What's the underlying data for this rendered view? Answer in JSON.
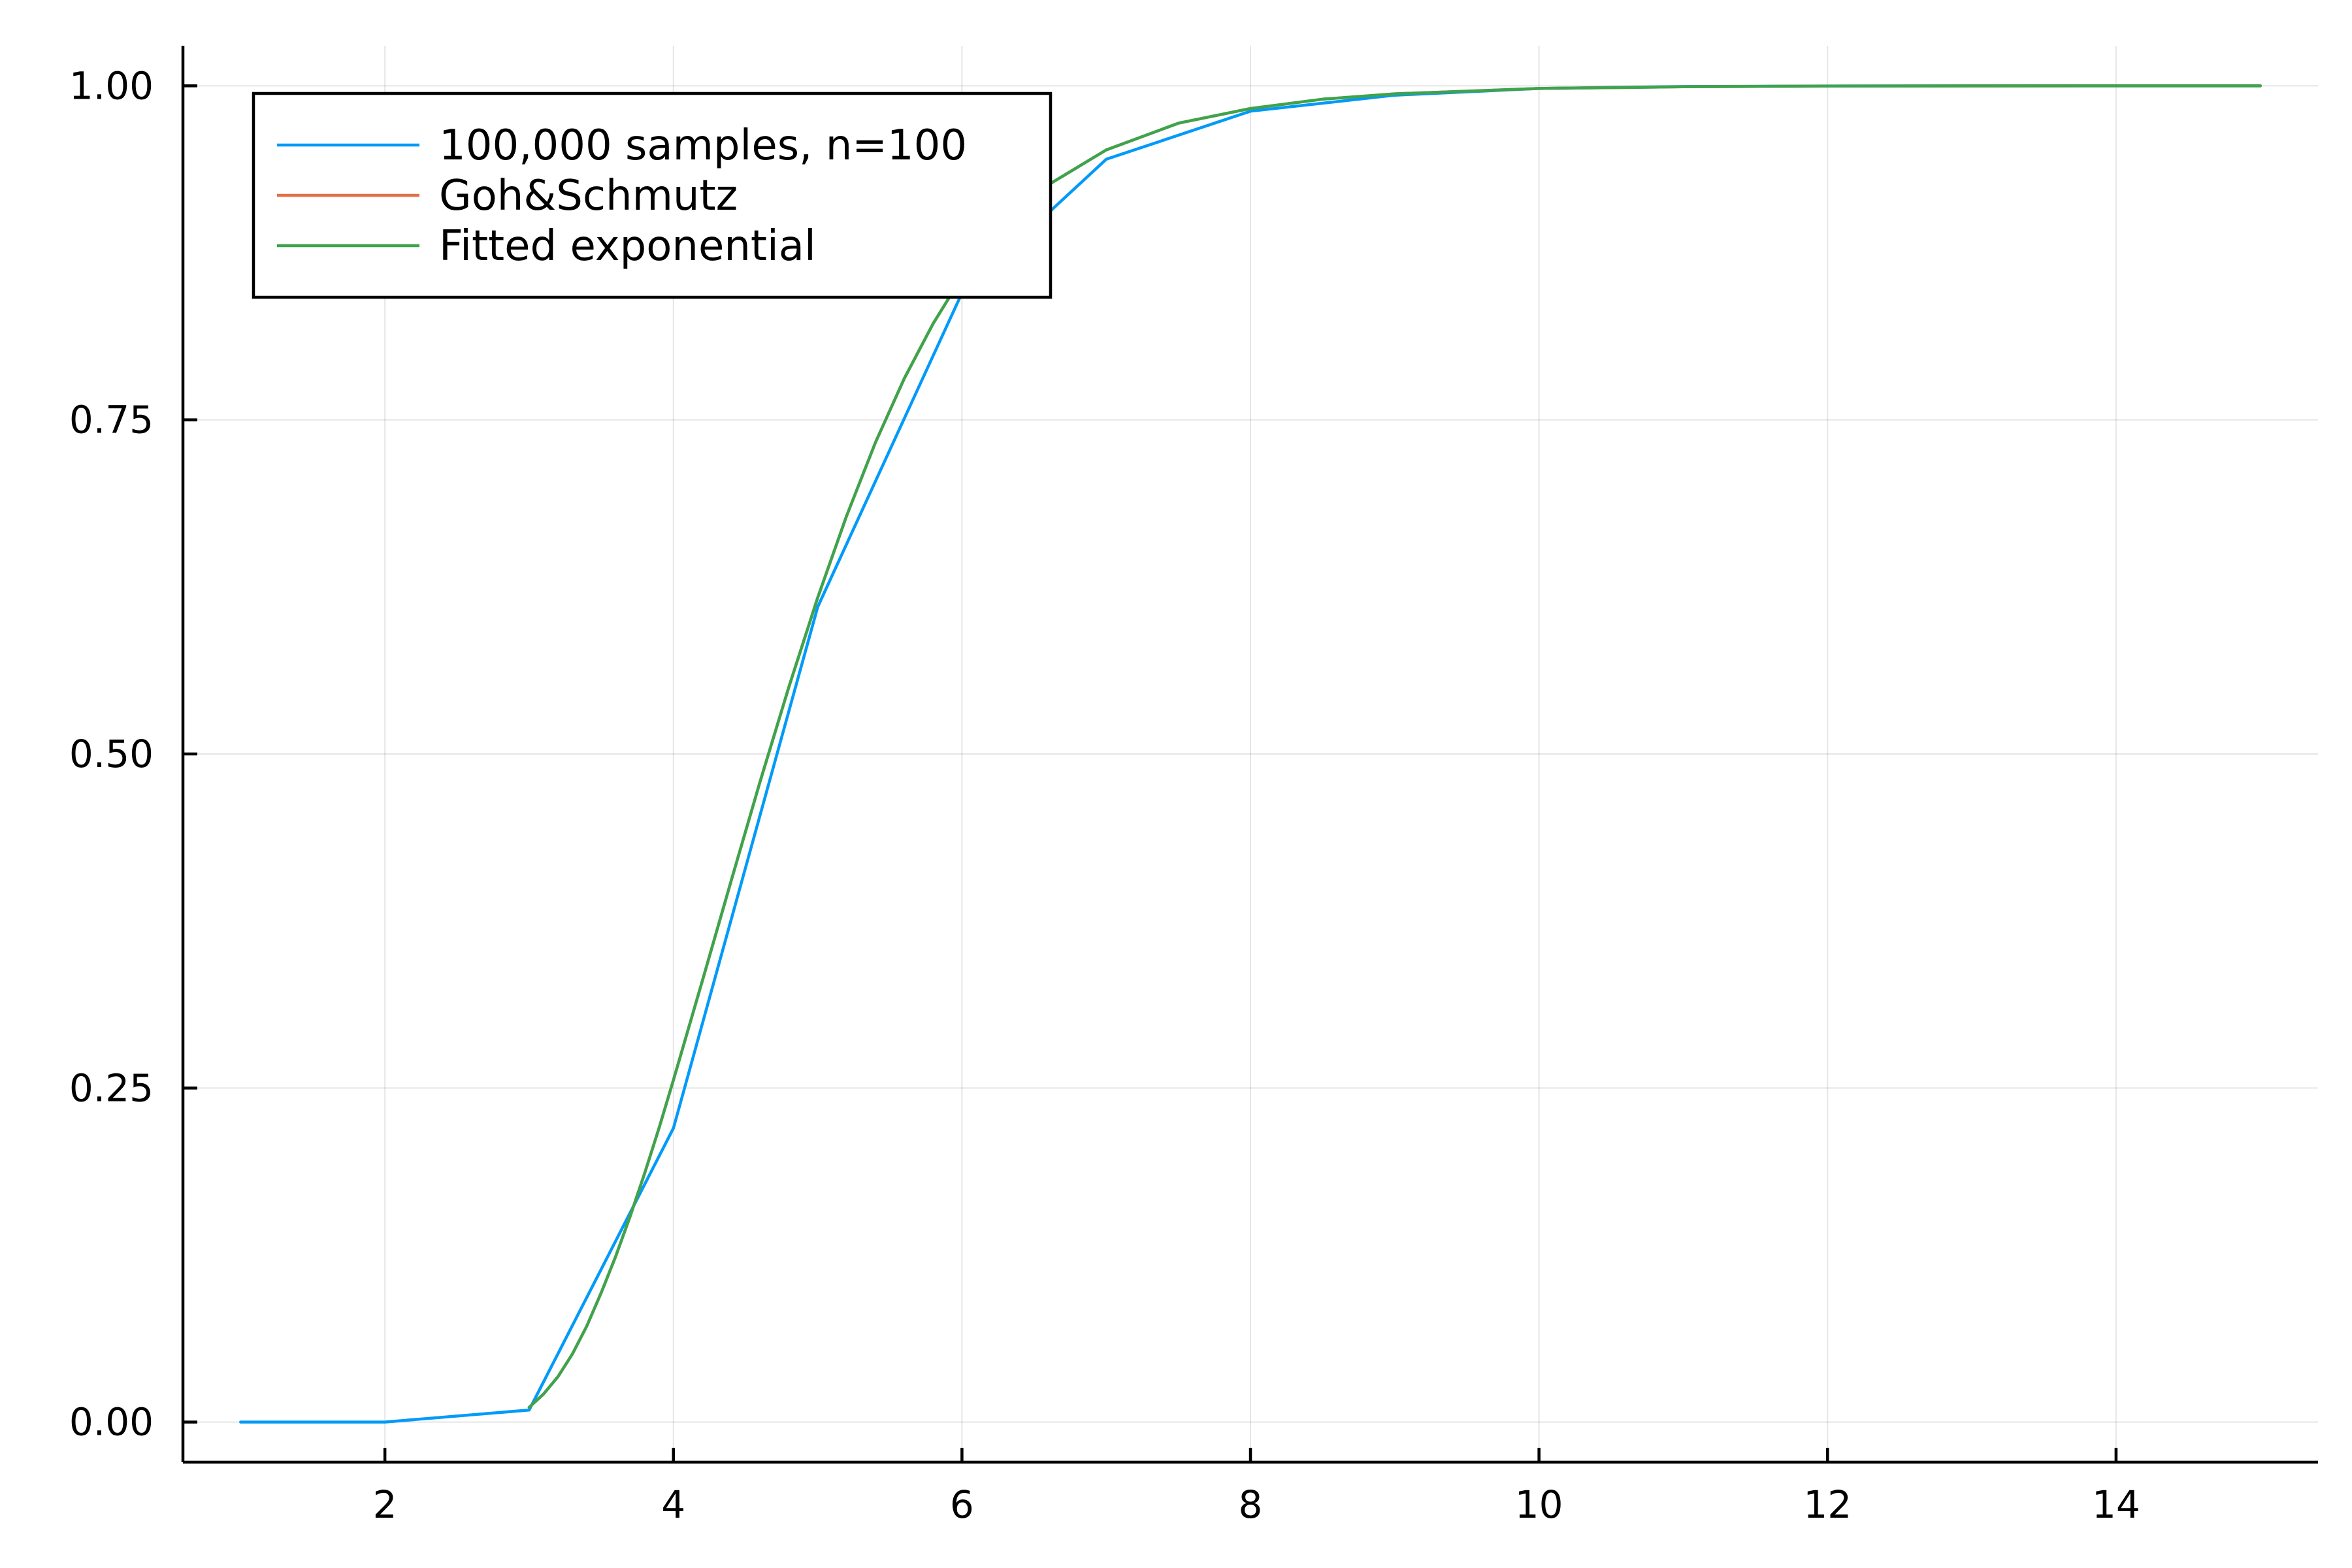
{
  "chart_data": {
    "type": "line",
    "title": "",
    "xlabel": "",
    "ylabel": "",
    "xlim": [
      0.6,
      15.4
    ],
    "ylim": [
      -0.03,
      1.03
    ],
    "x_ticks": [
      2,
      4,
      6,
      8,
      10,
      12,
      14
    ],
    "x_tick_labels": [
      "2",
      "4",
      "6",
      "8",
      "10",
      "12",
      "14"
    ],
    "y_ticks": [
      0.0,
      0.25,
      0.5,
      0.75,
      1.0
    ],
    "y_tick_labels": [
      "0.00",
      "0.25",
      "0.50",
      "0.75",
      "1.00"
    ],
    "grid": true,
    "legend_position": "top-left",
    "series": [
      {
        "name": "100,000 samples, n=100",
        "color": "#009af9",
        "x": [
          1,
          2,
          3,
          4,
          5,
          6,
          7,
          8,
          9,
          10,
          11,
          12,
          13,
          14,
          15
        ],
        "y": [
          0.0,
          0.0,
          0.009,
          0.22,
          0.61,
          0.845,
          0.945,
          0.981,
          0.993,
          0.998,
          0.9995,
          0.9999,
          1.0,
          1.0,
          1.0
        ]
      },
      {
        "name": "Goh&Schmutz",
        "color": "#e26f46",
        "x": [
          3.0,
          3.1,
          3.2,
          3.3,
          3.4,
          3.5,
          3.6,
          3.7,
          3.8,
          3.9,
          4.0,
          4.2,
          4.4,
          4.6,
          4.8,
          5.0,
          5.2,
          5.4,
          5.6,
          5.8,
          6.0,
          6.3,
          6.6,
          7.0,
          7.5,
          8.0,
          8.5,
          9.0,
          10.0,
          11.0,
          12.0,
          13.0,
          14.0,
          15.0
        ],
        "y": [
          0.011,
          0.021,
          0.034,
          0.051,
          0.072,
          0.097,
          0.124,
          0.154,
          0.186,
          0.22,
          0.256,
          0.33,
          0.405,
          0.479,
          0.55,
          0.617,
          0.678,
          0.733,
          0.781,
          0.822,
          0.857,
          0.897,
          0.926,
          0.952,
          0.972,
          0.983,
          0.99,
          0.994,
          0.998,
          0.9993,
          0.9998,
          0.99993,
          1.0,
          1.0
        ]
      },
      {
        "name": "Fitted exponential",
        "color": "#3da44d",
        "x": [
          3.0,
          3.1,
          3.2,
          3.3,
          3.4,
          3.5,
          3.6,
          3.7,
          3.8,
          3.9,
          4.0,
          4.2,
          4.4,
          4.6,
          4.8,
          5.0,
          5.2,
          5.4,
          5.6,
          5.8,
          6.0,
          6.3,
          6.6,
          7.0,
          7.5,
          8.0,
          8.5,
          9.0,
          10.0,
          11.0,
          12.0,
          13.0,
          14.0,
          15.0
        ],
        "y": [
          0.011,
          0.021,
          0.034,
          0.051,
          0.072,
          0.097,
          0.124,
          0.154,
          0.186,
          0.22,
          0.256,
          0.33,
          0.405,
          0.479,
          0.55,
          0.617,
          0.678,
          0.733,
          0.781,
          0.822,
          0.857,
          0.897,
          0.926,
          0.952,
          0.972,
          0.983,
          0.99,
          0.994,
          0.998,
          0.9993,
          0.9998,
          0.99993,
          1.0,
          1.0
        ]
      }
    ]
  }
}
